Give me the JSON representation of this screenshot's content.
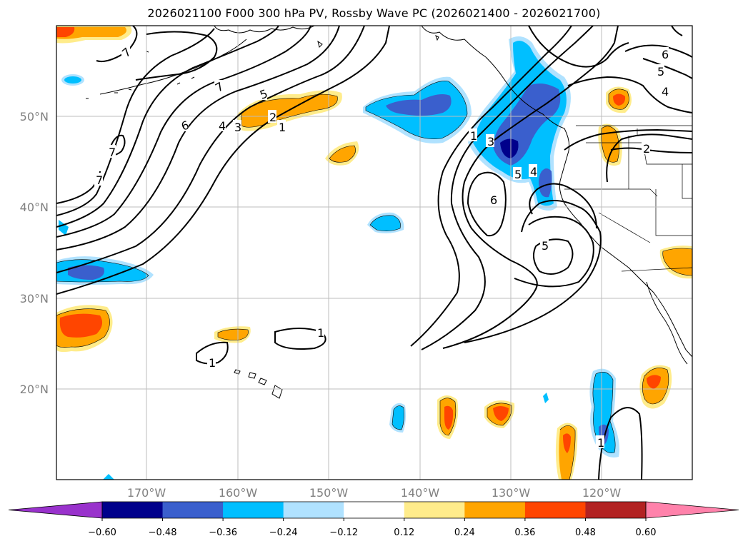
{
  "title": "2026021100 F000 300 hPa PV, Rossby Wave PC (2026021400 - 2026021700)",
  "map": {
    "lat_labels": [
      "50°N",
      "40°N",
      "30°N",
      "20°N"
    ],
    "lon_labels": [
      "170°W",
      "160°W",
      "150°W",
      "140°W",
      "130°W",
      "120°W"
    ],
    "contour_labels": [
      "7",
      "7",
      "6",
      "5",
      "4",
      "3",
      "2",
      "1",
      "7",
      "7",
      "1",
      "1",
      "1",
      "3",
      "5",
      "4",
      "6",
      "5",
      "2",
      "5",
      "6",
      "4",
      "1"
    ]
  },
  "colorbar": {
    "ticks": [
      "−0.60",
      "−0.48",
      "−0.36",
      "−0.24",
      "−0.12",
      "0.12",
      "0.24",
      "0.36",
      "0.48",
      "0.60"
    ],
    "colors": [
      "#9932CC",
      "#00008B",
      "#3A5FCD",
      "#00BFFF",
      "#B0E2FF",
      "#FFFFFF",
      "#FFEC8B",
      "#FFA500",
      "#FF4500",
      "#B22222",
      "#FF82AB"
    ]
  }
}
